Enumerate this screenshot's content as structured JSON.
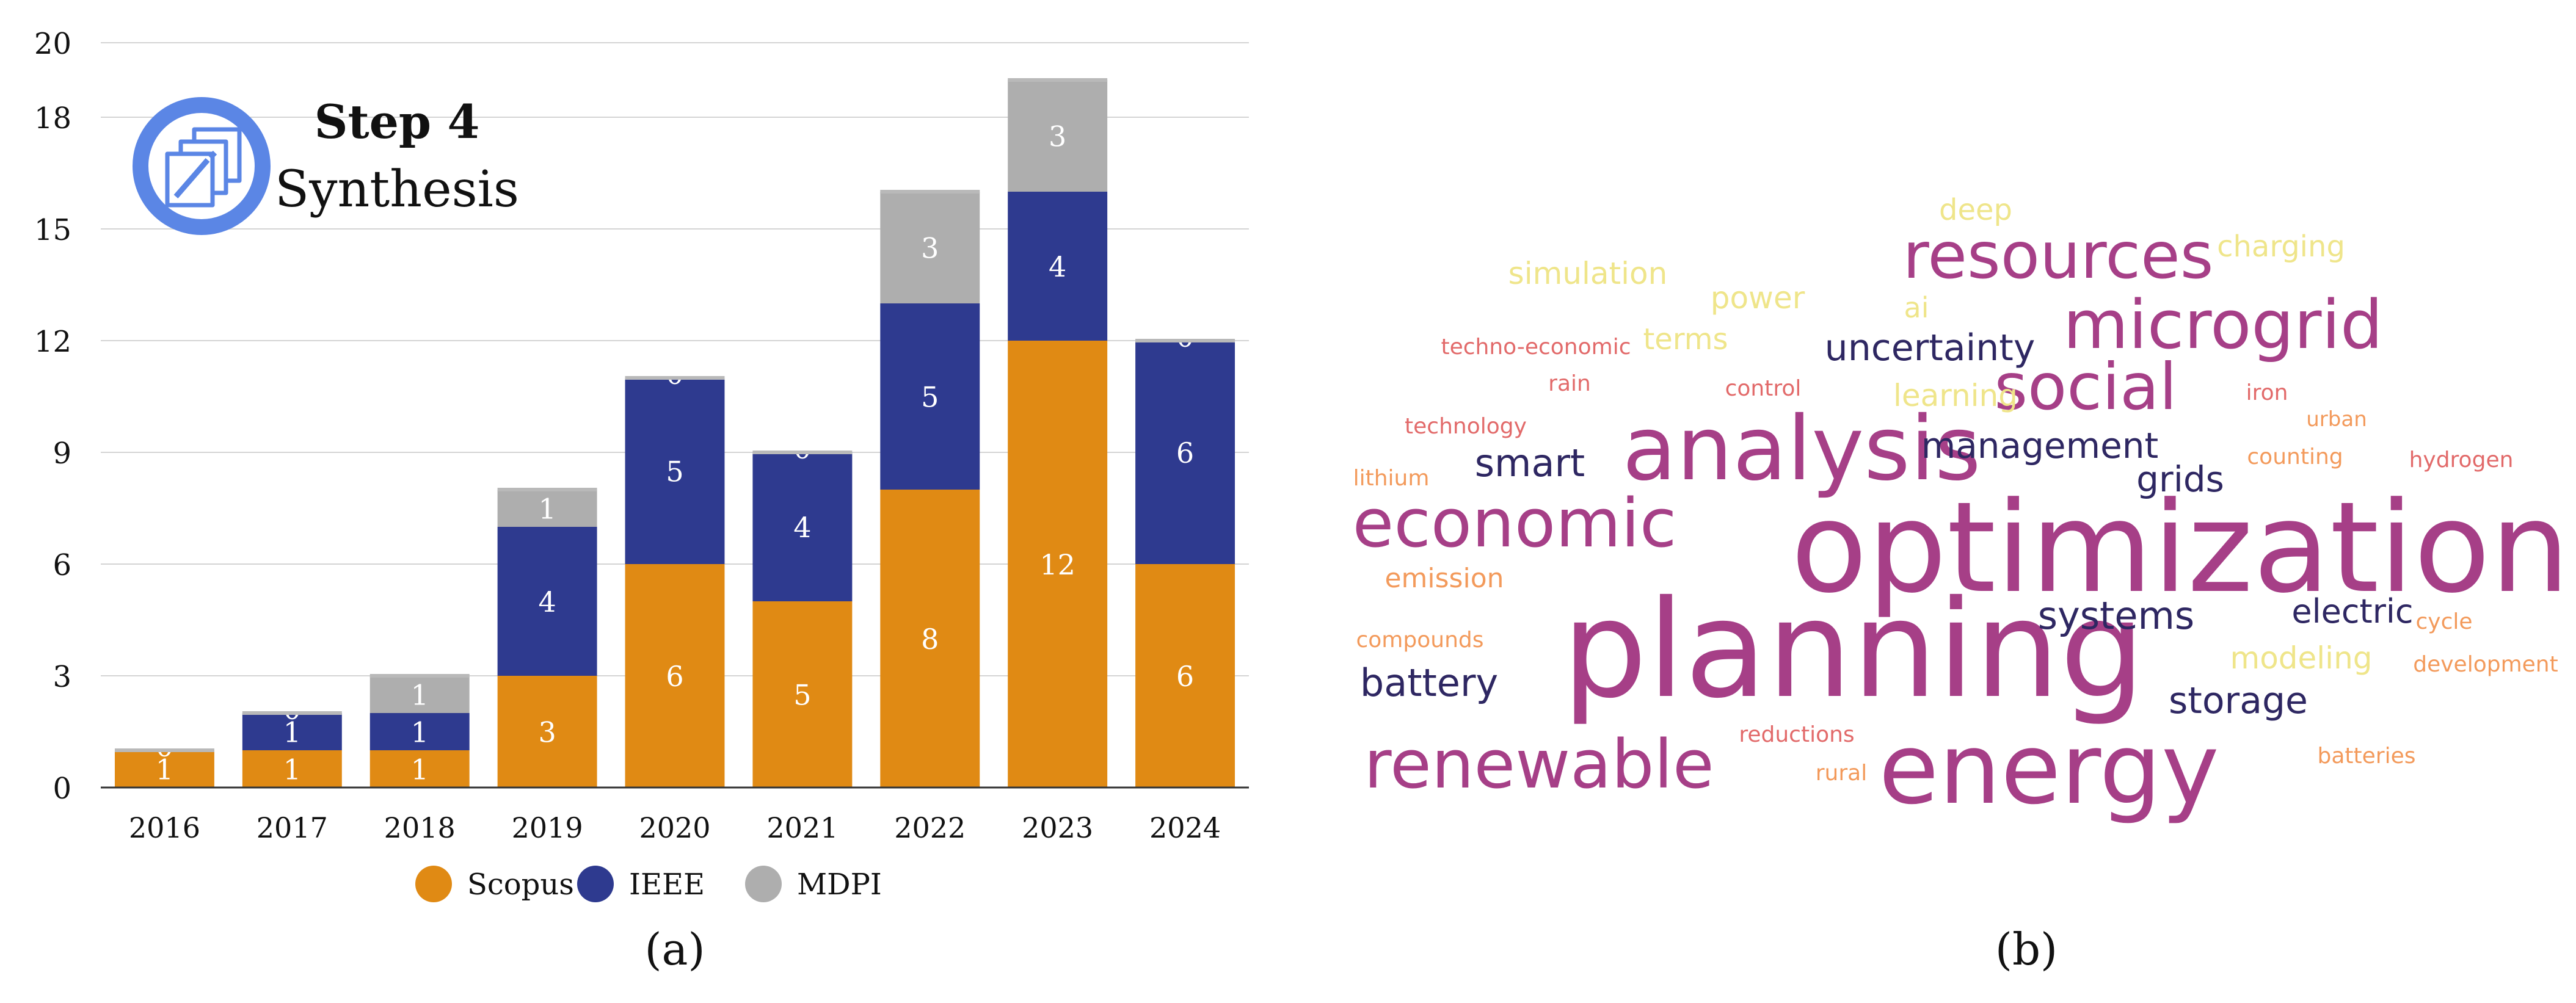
{
  "chart_data": [
    {
      "type": "bar",
      "stacked": true,
      "categories": [
        "2016",
        "2017",
        "2018",
        "2019",
        "2020",
        "2021",
        "2022",
        "2023",
        "2024"
      ],
      "series": [
        {
          "name": "Scopus",
          "color": "#E08A14",
          "values": [
            1,
            1,
            1,
            3,
            6,
            5,
            8,
            12,
            6
          ]
        },
        {
          "name": "IEEE",
          "color": "#2E3A8F",
          "values": [
            0,
            1,
            1,
            4,
            5,
            4,
            5,
            4,
            6
          ]
        },
        {
          "name": "MDPI",
          "color": "#AEAEAE",
          "values": [
            0,
            0,
            1,
            1,
            0,
            0,
            3,
            3,
            0
          ]
        }
      ],
      "ylim": [
        0,
        20
      ],
      "yticks": [
        "0",
        "3",
        "6",
        "9",
        "12",
        "15",
        "18",
        "20"
      ],
      "grid": true,
      "legend": "bottom",
      "badge": {
        "title": "Step 4",
        "subtitle": "Synthesis",
        "icon": "edit-documents-icon",
        "color": "#5B86E5"
      },
      "panel_label": "(a)"
    },
    {
      "type": "wordcloud",
      "panel_label": "(b)",
      "words": [
        {
          "text": "optimization",
          "color": "#A63F87"
        },
        {
          "text": "planning",
          "color": "#A63F87"
        },
        {
          "text": "energy",
          "color": "#A63F87"
        },
        {
          "text": "analysis",
          "color": "#A63F87"
        },
        {
          "text": "economic",
          "color": "#A63F87"
        },
        {
          "text": "renewable",
          "color": "#A63F87"
        },
        {
          "text": "microgrid",
          "color": "#A63F87"
        },
        {
          "text": "resources",
          "color": "#A63F87"
        },
        {
          "text": "social",
          "color": "#A63F87"
        },
        {
          "text": "uncertainty",
          "color": "#2E2762"
        },
        {
          "text": "management",
          "color": "#2E2762"
        },
        {
          "text": "smart",
          "color": "#2E2762"
        },
        {
          "text": "grids",
          "color": "#2E2762"
        },
        {
          "text": "systems",
          "color": "#2E2762"
        },
        {
          "text": "electric",
          "color": "#2E2762"
        },
        {
          "text": "battery",
          "color": "#2E2762"
        },
        {
          "text": "storage",
          "color": "#2E2762"
        },
        {
          "text": "deep",
          "color": "#EFE58A"
        },
        {
          "text": "charging",
          "color": "#EFE58A"
        },
        {
          "text": "simulation",
          "color": "#EFE58A"
        },
        {
          "text": "power",
          "color": "#EFE58A"
        },
        {
          "text": "ai",
          "color": "#EFE58A"
        },
        {
          "text": "terms",
          "color": "#EFE58A"
        },
        {
          "text": "learning",
          "color": "#EFE58A"
        },
        {
          "text": "modeling",
          "color": "#EFE58A"
        },
        {
          "text": "techno-economic",
          "color": "#E26A6A"
        },
        {
          "text": "rain",
          "color": "#E26A6A"
        },
        {
          "text": "control",
          "color": "#E26A6A"
        },
        {
          "text": "iron",
          "color": "#E26A6A"
        },
        {
          "text": "technology",
          "color": "#E26A6A"
        },
        {
          "text": "hydrogen",
          "color": "#E26A6A"
        },
        {
          "text": "reductions",
          "color": "#E26A6A"
        },
        {
          "text": "rural",
          "color": "#F39A5B"
        },
        {
          "text": "urban",
          "color": "#F39A5B"
        },
        {
          "text": "counting",
          "color": "#F39A5B"
        },
        {
          "text": "lithium",
          "color": "#F39A5B"
        },
        {
          "text": "emission",
          "color": "#F39A5B"
        },
        {
          "text": "compounds",
          "color": "#F39A5B"
        },
        {
          "text": "cycle",
          "color": "#F39A5B"
        },
        {
          "text": "development",
          "color": "#F39A5B"
        },
        {
          "text": "batteries",
          "color": "#F39A5B"
        }
      ]
    }
  ]
}
